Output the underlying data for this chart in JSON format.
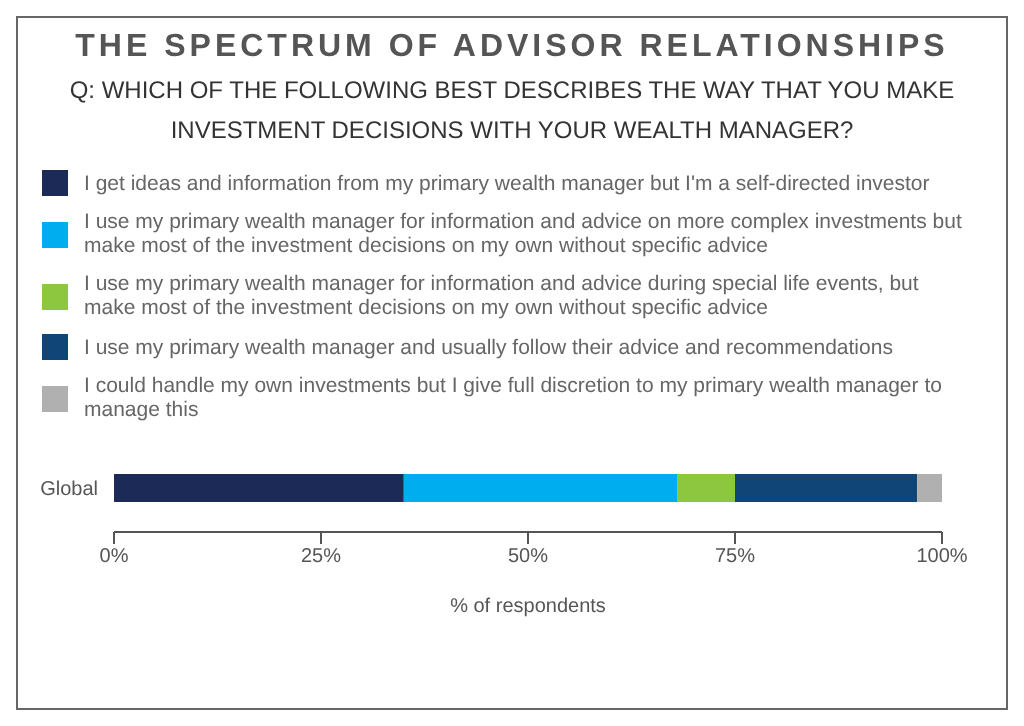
{
  "chart_data": {
    "type": "bar",
    "orientation": "horizontal",
    "stacked": true,
    "title": "THE SPECTRUM OF ADVISOR RELATIONSHIPS",
    "subtitle": "Q: WHICH OF THE FOLLOWING BEST DESCRIBES THE WAY THAT YOU MAKE INVESTMENT DECISIONS WITH YOUR WEALTH MANAGER?",
    "xlabel": "% of respondents",
    "categories": [
      "Global"
    ],
    "series": [
      {
        "name": "I get ideas and information from my primary wealth manager but I'm a self-directed investor",
        "color": "#1b2a57",
        "values": [
          35
        ]
      },
      {
        "name": "I use my primary wealth manager for information and advice on more complex investments but make most of the investment decisions on my own without specific advice",
        "color": "#00aeef",
        "values": [
          33
        ]
      },
      {
        "name": "I use my primary wealth manager for information and advice during special life events, but make most of the investment decisions on my own without specific advice",
        "color": "#8dc63f",
        "values": [
          7
        ]
      },
      {
        "name": "I use my primary wealth manager and usually follow their advice and recommendations",
        "color": "#0f4577",
        "values": [
          22
        ]
      },
      {
        "name": "I could handle my own investments but I give full discretion to my primary wealth manager to manage this",
        "color": "#b0b0b0",
        "values": [
          3
        ]
      }
    ],
    "xlim": [
      0,
      100
    ],
    "xticks": [
      {
        "value": 0,
        "label": "0%"
      },
      {
        "value": 25,
        "label": "25%"
      },
      {
        "value": 50,
        "label": "50%"
      },
      {
        "value": 75,
        "label": "75%"
      },
      {
        "value": 100,
        "label": "100%"
      }
    ],
    "grid": false,
    "legend": "top"
  }
}
